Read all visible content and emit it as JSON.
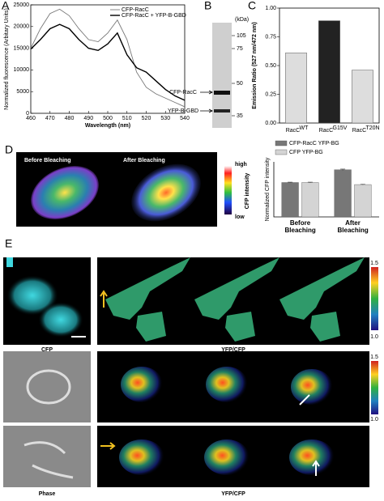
{
  "panel_labels": [
    "A",
    "B",
    "C",
    "D",
    "E"
  ],
  "chart_data": [
    {
      "type": "line",
      "xlabel": "Wavelength (nm)",
      "ylabel": "Normalized fluorescence (Arbitary Units)",
      "x": [
        460,
        465,
        470,
        475,
        480,
        485,
        490,
        495,
        500,
        505,
        510,
        515,
        520,
        525,
        530,
        535,
        540
      ],
      "series": [
        {
          "name": "CFP-RacC",
          "color": "#777777",
          "values": [
            15000,
            19500,
            23000,
            24000,
            22500,
            19500,
            17000,
            16500,
            18500,
            21500,
            17000,
            9500,
            6000,
            4500,
            3500,
            2500,
            1500
          ]
        },
        {
          "name": "CFP-RacC + YFP-B-GBD",
          "color": "#000000",
          "values": [
            14800,
            17000,
            19500,
            20500,
            19500,
            17000,
            15000,
            14500,
            16000,
            18500,
            13500,
            10500,
            9500,
            7500,
            5500,
            4000,
            3000
          ]
        }
      ],
      "xlim": [
        460,
        540
      ],
      "xticks": [
        460,
        470,
        480,
        490,
        500,
        510,
        520,
        530,
        540
      ],
      "ylim": [
        0,
        25000
      ],
      "yticks": [
        0,
        5000,
        10000,
        15000,
        20000,
        25000
      ],
      "legend": "upper right"
    },
    {
      "type": "bar",
      "ylabel": "Emission Ratio (527 nm/472 nm)",
      "categories": [
        "RacC",
        "RacC",
        "RacC"
      ],
      "category_superscripts": [
        "WT",
        "G15V",
        "T20N"
      ],
      "values": [
        0.61,
        0.89,
        0.46
      ],
      "colors": [
        "#dddddd",
        "#222222",
        "#dddddd"
      ],
      "ylim": [
        0,
        1
      ],
      "yticks": [
        {
          "value": 0,
          "label": "0.00"
        },
        {
          "value": 0.25,
          "label": "0.25"
        },
        {
          "value": 0.5,
          "label": "0.50"
        },
        {
          "value": 0.75,
          "label": "0.75"
        },
        {
          "value": 1,
          "label": "1.00"
        }
      ]
    },
    {
      "type": "grouped_bar",
      "ylabel": "Normalized CFP intensity",
      "categories": [
        "Before Bleaching",
        "After Bleaching"
      ],
      "series": [
        {
          "name": "CFP-RacC YFP-BG",
          "color": "#777777",
          "values": [
            1.0,
            1.37
          ],
          "errors": [
            0.01,
            0.02
          ]
        },
        {
          "name": "CFP YFP-BG",
          "color": "#d4d4d4",
          "values": [
            1.0,
            0.94
          ],
          "errors": [
            0.01,
            0.01
          ]
        }
      ],
      "ylim": [
        0,
        1.6
      ],
      "legend": "top"
    }
  ],
  "blot": {
    "unit": "(kDa)",
    "markers": [
      105,
      75,
      50,
      35
    ],
    "bands": [
      "CFP-RacC",
      "YFP-B-GBD"
    ]
  },
  "bleach": {
    "before": "Before Bleaching",
    "after": "After Bleaching",
    "high": "high",
    "low": "low",
    "scale_title": "CFP intensity"
  },
  "panel_e": {
    "labels": [
      "CFP",
      "YFP/CFP",
      "Phase",
      "YFP/CFP"
    ],
    "scale_max": "1.5",
    "scale_min": "1.0"
  }
}
